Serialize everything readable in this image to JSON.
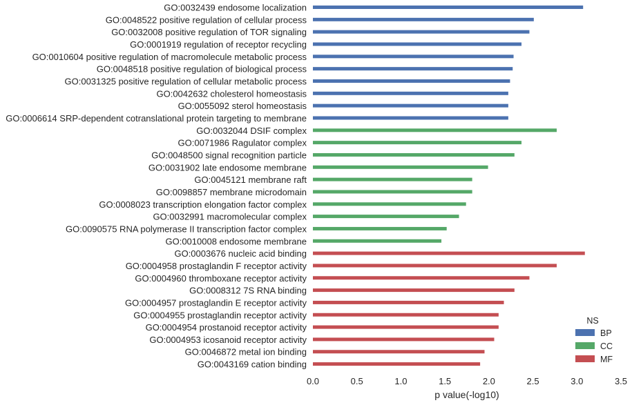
{
  "chart_data": {
    "type": "bar",
    "orientation": "horizontal",
    "title": "",
    "xlabel": "p value(-log10)",
    "ylabel": "",
    "xlim": [
      0,
      3.5
    ],
    "xticks": [
      "0.0",
      "0.5",
      "1.0",
      "1.5",
      "2.0",
      "2.5",
      "3.0",
      "3.5"
    ],
    "grid": false,
    "legend": {
      "title": "NS",
      "placement": "bottom-right",
      "entries": [
        {
          "name": "BP",
          "color": "#4c72b0"
        },
        {
          "name": "CC",
          "color": "#55a868"
        },
        {
          "name": "MF",
          "color": "#c44e52"
        }
      ]
    },
    "bars": [
      {
        "label": "GO:0032439 endosome localization",
        "ns": "BP",
        "value": 3.07
      },
      {
        "label": "GO:0048522 positive regulation of cellular process",
        "ns": "BP",
        "value": 2.51
      },
      {
        "label": "GO:0032008 positive regulation of TOR signaling",
        "ns": "BP",
        "value": 2.46
      },
      {
        "label": "GO:0001919 regulation of receptor recycling",
        "ns": "BP",
        "value": 2.37
      },
      {
        "label": "GO:0010604 positive regulation of macromolecule metabolic process",
        "ns": "BP",
        "value": 2.28
      },
      {
        "label": "GO:0048518 positive regulation of biological process",
        "ns": "BP",
        "value": 2.27
      },
      {
        "label": "GO:0031325 positive regulation of cellular metabolic process",
        "ns": "BP",
        "value": 2.24
      },
      {
        "label": "GO:0042632 cholesterol homeostasis",
        "ns": "BP",
        "value": 2.22
      },
      {
        "label": "GO:0055092 sterol homeostasis",
        "ns": "BP",
        "value": 2.22
      },
      {
        "label": "GO:0006614 SRP-dependent cotranslational protein targeting to membrane",
        "ns": "BP",
        "value": 2.22
      },
      {
        "label": "GO:0032044 DSIF complex",
        "ns": "CC",
        "value": 2.77
      },
      {
        "label": "GO:0071986 Ragulator complex",
        "ns": "CC",
        "value": 2.37
      },
      {
        "label": "GO:0048500 signal recognition particle",
        "ns": "CC",
        "value": 2.29
      },
      {
        "label": "GO:0031902 late endosome membrane",
        "ns": "CC",
        "value": 1.99
      },
      {
        "label": "GO:0045121 membrane raft",
        "ns": "CC",
        "value": 1.81
      },
      {
        "label": "GO:0098857 membrane microdomain",
        "ns": "CC",
        "value": 1.81
      },
      {
        "label": "GO:0008023 transcription elongation factor complex",
        "ns": "CC",
        "value": 1.74
      },
      {
        "label": "GO:0032991 macromolecular complex",
        "ns": "CC",
        "value": 1.66
      },
      {
        "label": "GO:0090575 RNA polymerase II transcription factor complex",
        "ns": "CC",
        "value": 1.52
      },
      {
        "label": "GO:0010008 endosome membrane",
        "ns": "CC",
        "value": 1.46
      },
      {
        "label": "GO:0003676 nucleic acid binding",
        "ns": "MF",
        "value": 3.09
      },
      {
        "label": "GO:0004958 prostaglandin F receptor activity",
        "ns": "MF",
        "value": 2.77
      },
      {
        "label": "GO:0004960 thromboxane receptor activity",
        "ns": "MF",
        "value": 2.46
      },
      {
        "label": "GO:0008312 7S RNA binding",
        "ns": "MF",
        "value": 2.29
      },
      {
        "label": "GO:0004957 prostaglandin E receptor activity",
        "ns": "MF",
        "value": 2.17
      },
      {
        "label": "GO:0004955 prostaglandin receptor activity",
        "ns": "MF",
        "value": 2.11
      },
      {
        "label": "GO:0004954 prostanoid receptor activity",
        "ns": "MF",
        "value": 2.11
      },
      {
        "label": "GO:0004953 icosanoid receptor activity",
        "ns": "MF",
        "value": 2.06
      },
      {
        "label": "GO:0046872 metal ion binding",
        "ns": "MF",
        "value": 1.95
      },
      {
        "label": "GO:0043169 cation binding",
        "ns": "MF",
        "value": 1.9
      }
    ]
  }
}
